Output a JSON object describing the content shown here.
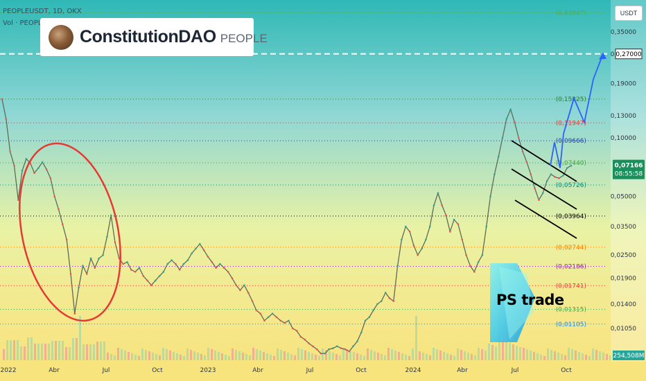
{
  "header": {
    "symbol_line": "PEOPLEUSDT, 1D, OKX",
    "volume_line": "Vol · PEOPLE"
  },
  "brand": {
    "name": "ConstitutionDAO",
    "ticker": "PEOPLE"
  },
  "watermark": {
    "text": "PS trade",
    "colors": [
      "#7fe1f2",
      "#4fc7e8",
      "#2aa7d6"
    ]
  },
  "currency_label": "USDT",
  "colors": {
    "price_up": "#26a69a",
    "price_down": "#ef5350",
    "projection": "#2962ff",
    "circle": "#e53935",
    "channel": "#000000"
  },
  "chart_data": {
    "type": "line",
    "x_ticks": [
      "2022",
      "Abr",
      "Jul",
      "Oct",
      "2023",
      "Abr",
      "Jul",
      "Oct",
      "2024",
      "Abr",
      "Jul",
      "Oct"
    ],
    "y_ticks": [
      "0,35000",
      "0,27000",
      "0,19000",
      "0,13000",
      "0,10000",
      "0,05000",
      "0,03500",
      "0,02500",
      "0,01900",
      "0,01400",
      "0,01050"
    ],
    "current_price": "0,07166",
    "countdown": "08:55:58",
    "target_label": "0,27000",
    "volume_label": "254,508M",
    "levels": [
      {
        "label": "(0,43947)",
        "color": "#4caf50"
      },
      {
        "label": "0,27000",
        "color": "#ffffff"
      },
      {
        "label": "(0,15825)",
        "color": "#2e7d32"
      },
      {
        "label": "(0,11947)",
        "color": "#e53935"
      },
      {
        "label": "(0,09666)",
        "color": "#1e3fa8"
      },
      {
        "label": "(0,07440)",
        "color": "#43a047"
      },
      {
        "label": "(0,05726)",
        "color": "#00897b"
      },
      {
        "label": "(0,03964)",
        "color": "#000000"
      },
      {
        "label": "(0,02744)",
        "color": "#f57c00"
      },
      {
        "label": "(0,02186)",
        "color": "#8e24aa"
      },
      {
        "label": "(0,01741)",
        "color": "#e53935"
      },
      {
        "label": "(0,01315)",
        "color": "#43a047"
      },
      {
        "label": "(0,01105)",
        "color": "#1e88e5"
      }
    ],
    "series": [
      {
        "values": [
          0.158,
          0.125,
          0.085,
          0.072,
          0.048,
          0.068,
          0.078,
          0.074,
          0.066,
          0.07,
          0.075,
          0.069,
          0.062,
          0.05,
          0.043,
          0.036,
          0.03,
          0.02,
          0.0125,
          0.017,
          0.022,
          0.02,
          0.024,
          0.0215,
          0.024,
          0.025,
          0.031,
          0.04,
          0.029,
          0.024,
          0.0225,
          0.023,
          0.021,
          0.0205,
          0.0215,
          0.0195,
          0.0185,
          0.0175,
          0.0185,
          0.0195,
          0.0205,
          0.0225,
          0.0235,
          0.0225,
          0.021,
          0.0225,
          0.0235,
          0.0255,
          0.027,
          0.0285,
          0.0265,
          0.0245,
          0.023,
          0.0215,
          0.0225,
          0.0215,
          0.0205,
          0.019,
          0.0175,
          0.0165,
          0.0175,
          0.016,
          0.0145,
          0.013,
          0.0125,
          0.0115,
          0.012,
          0.0125,
          0.012,
          0.0115,
          0.0112,
          0.0115,
          0.0105,
          0.0102,
          0.0095,
          0.0092,
          0.0088,
          0.0085,
          0.0082,
          0.0078,
          0.0078,
          0.0082,
          0.0083,
          0.0085,
          0.0083,
          0.0082,
          0.008,
          0.0085,
          0.009,
          0.01,
          0.0115,
          0.012,
          0.013,
          0.014,
          0.0145,
          0.016,
          0.015,
          0.0145,
          0.022,
          0.03,
          0.035,
          0.033,
          0.028,
          0.025,
          0.027,
          0.03,
          0.035,
          0.045,
          0.052,
          0.045,
          0.04,
          0.033,
          0.038,
          0.036,
          0.03,
          0.025,
          0.022,
          0.0205,
          0.023,
          0.025,
          0.035,
          0.05,
          0.065,
          0.08,
          0.1,
          0.125,
          0.14,
          0.12,
          0.1,
          0.085,
          0.075,
          0.065,
          0.055,
          0.048,
          0.052,
          0.06,
          0.065,
          0.063,
          0.062,
          0.064,
          0.07,
          0.072
        ]
      }
    ],
    "projection": [
      0.072,
      0.095,
      0.07,
      0.105,
      0.16,
      0.12,
      0.2,
      0.27
    ],
    "channel_lines": 3
  }
}
